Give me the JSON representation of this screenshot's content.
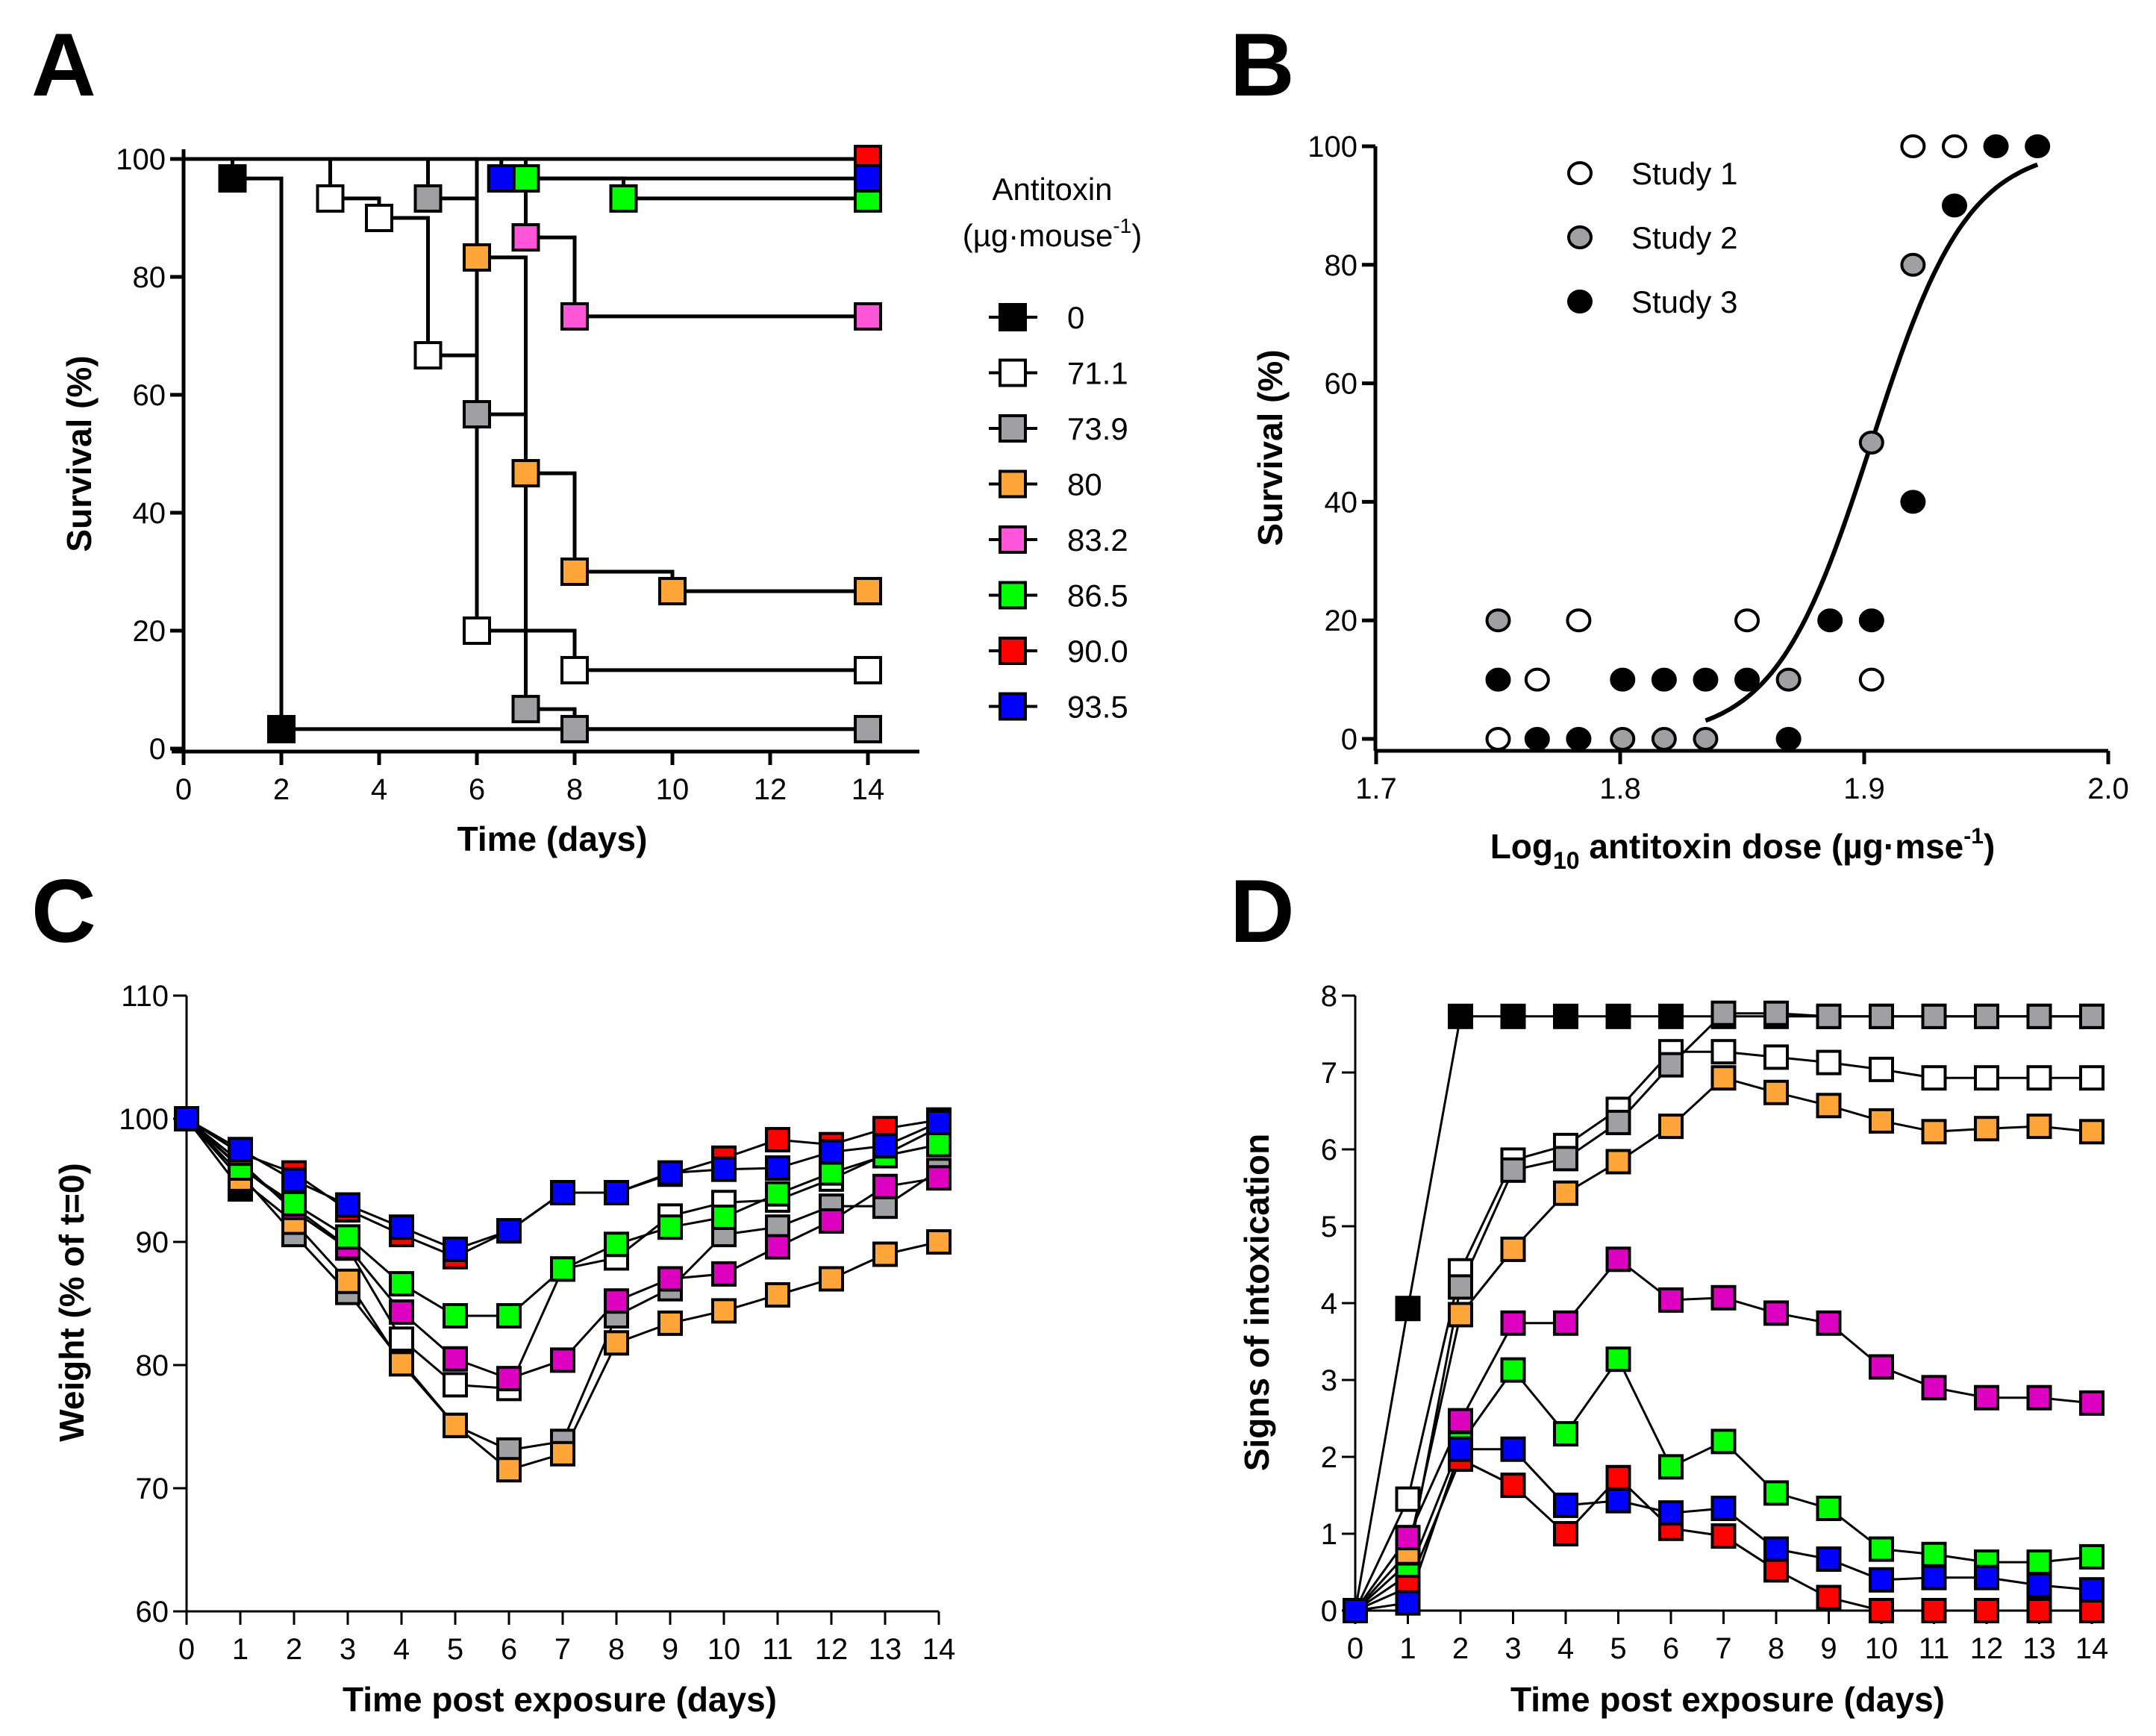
{
  "figure": {
    "panels": [
      "A",
      "B",
      "C",
      "D"
    ]
  },
  "series_styles": [
    {
      "dose": "0",
      "fill": "#000000"
    },
    {
      "dose": "71.1",
      "fill": "#ffffff"
    },
    {
      "dose": "73.9",
      "fill": "#a0a0a4"
    },
    {
      "dose": "80",
      "fill": "#ffa53a"
    },
    {
      "dose": "83.2",
      "fill": "#ff55d8"
    },
    {
      "dose": "86.5",
      "fill": "#00ff00"
    },
    {
      "dose": "90.0",
      "fill": "#ff0000"
    },
    {
      "dose": "93.5",
      "fill": "#0000ff"
    }
  ],
  "legend_A": {
    "title_line1": "Antitoxin",
    "title_line2_prefix": "(µg·mouse",
    "title_line2_sup": "-1",
    "title_line2_suffix": ")",
    "entries": [
      "0",
      "71.1",
      "73.9",
      "80",
      "83.2",
      "86.5",
      "90.0",
      "93.5"
    ]
  },
  "chart_data": [
    {
      "panel": "A",
      "type": "line",
      "subtype": "kaplan-meier step",
      "title": "",
      "xlabel": "Time (days)",
      "ylabel": "Survival (%)",
      "xlim": [
        0,
        15
      ],
      "ylim": [
        0,
        100
      ],
      "xticks": [
        0,
        2,
        4,
        6,
        8,
        10,
        12,
        14
      ],
      "yticks": [
        0,
        20,
        40,
        60,
        80,
        100
      ],
      "legend_position": "right",
      "series": [
        {
          "name": "0",
          "points": [
            [
              0,
              100
            ],
            [
              1,
              96.7
            ],
            [
              2,
              3.3
            ],
            [
              14,
              3.3
            ]
          ],
          "markers": [
            [
              1,
              96.7
            ],
            [
              2,
              3.3
            ]
          ]
        },
        {
          "name": "71.1",
          "points": [
            [
              0,
              100
            ],
            [
              3,
              93.3
            ],
            [
              4,
              90
            ],
            [
              5,
              66.7
            ],
            [
              6,
              20
            ],
            [
              8,
              13.3
            ],
            [
              14,
              13.3
            ]
          ],
          "markers": [
            [
              3,
              93.3
            ],
            [
              4,
              90
            ],
            [
              5,
              66.7
            ],
            [
              6,
              20
            ],
            [
              8,
              13.3
            ],
            [
              14,
              13.3
            ]
          ]
        },
        {
          "name": "73.9",
          "points": [
            [
              0,
              100
            ],
            [
              5,
              93.3
            ],
            [
              6,
              56.7
            ],
            [
              7,
              6.7
            ],
            [
              8,
              3.3
            ],
            [
              14,
              3.3
            ]
          ],
          "markers": [
            [
              5,
              93.3
            ],
            [
              6,
              56.7
            ],
            [
              7,
              6.7
            ],
            [
              8,
              3.3
            ],
            [
              14,
              3.3
            ]
          ]
        },
        {
          "name": "80",
          "points": [
            [
              0,
              100
            ],
            [
              6,
              83.3
            ],
            [
              7,
              46.7
            ],
            [
              8,
              30
            ],
            [
              10,
              26.7
            ],
            [
              14,
              26.7
            ]
          ],
          "markers": [
            [
              6,
              83.3
            ],
            [
              7,
              46.7
            ],
            [
              8,
              30
            ],
            [
              10,
              26.7
            ],
            [
              14,
              26.7
            ]
          ]
        },
        {
          "name": "83.2",
          "points": [
            [
              0,
              100
            ],
            [
              7,
              86.7
            ],
            [
              8,
              73.3
            ],
            [
              14,
              73.3
            ]
          ],
          "markers": [
            [
              7,
              86.7
            ],
            [
              8,
              73.3
            ],
            [
              14,
              73.3
            ]
          ]
        },
        {
          "name": "86.5",
          "points": [
            [
              0,
              100
            ],
            [
              7,
              96.7
            ],
            [
              9,
              93.3
            ],
            [
              14,
              93.3
            ]
          ],
          "markers": [
            [
              7,
              96.7
            ],
            [
              9,
              93.3
            ],
            [
              14,
              93.3
            ]
          ]
        },
        {
          "name": "90.0",
          "points": [
            [
              0,
              100
            ],
            [
              14,
              100
            ]
          ],
          "markers": [
            [
              14,
              100
            ]
          ]
        },
        {
          "name": "93.5",
          "points": [
            [
              0,
              100
            ],
            [
              6.5,
              96.7
            ],
            [
              14,
              96.7
            ]
          ],
          "markers": [
            [
              6.5,
              96.7
            ],
            [
              14,
              96.7
            ]
          ]
        }
      ]
    },
    {
      "panel": "B",
      "type": "scatter",
      "title": "",
      "xlabel_prefix": "Log",
      "xlabel_sub": "10",
      "xlabel_mid": " antitoxin dose (µg·mse",
      "xlabel_sup": "-1",
      "xlabel_suffix": ")",
      "ylabel": "Survival (%)",
      "xlim": [
        1.7,
        2.0
      ],
      "ylim": [
        0,
        100
      ],
      "xticks": [
        "1.7",
        "1.8",
        "1.9",
        "2.0"
      ],
      "yticks": [
        0,
        20,
        40,
        60,
        80,
        100
      ],
      "legend_position": "top-left",
      "series": [
        {
          "name": "Study 1",
          "fill": "#ffffff",
          "points": [
            [
              1.75,
              0
            ],
            [
              1.766,
              10
            ],
            [
              1.783,
              20
            ],
            [
              1.852,
              20
            ],
            [
              1.903,
              10
            ],
            [
              1.92,
              100
            ],
            [
              1.937,
              100
            ]
          ]
        },
        {
          "name": "Study 2",
          "fill": "#a0a0a4",
          "points": [
            [
              1.75,
              20
            ],
            [
              1.801,
              0
            ],
            [
              1.818,
              0
            ],
            [
              1.835,
              0
            ],
            [
              1.869,
              10
            ],
            [
              1.903,
              50
            ],
            [
              1.92,
              80
            ]
          ]
        },
        {
          "name": "Study 3",
          "fill": "#000000",
          "points": [
            [
              1.75,
              10
            ],
            [
              1.766,
              0
            ],
            [
              1.783,
              0
            ],
            [
              1.801,
              10
            ],
            [
              1.818,
              10
            ],
            [
              1.835,
              10
            ],
            [
              1.852,
              10
            ],
            [
              1.869,
              0
            ],
            [
              1.886,
              20
            ],
            [
              1.903,
              20
            ],
            [
              1.92,
              40
            ],
            [
              1.937,
              90
            ],
            [
              1.954,
              100
            ],
            [
              1.971,
              100
            ]
          ]
        }
      ],
      "fit_curve": {
        "type": "sigmoid",
        "x_range": [
          1.835,
          1.971
        ],
        "bottom": 0,
        "top": 100,
        "ec50_log": 1.903,
        "hill_slope": 22
      }
    },
    {
      "panel": "C",
      "type": "line",
      "title": "",
      "xlabel": "Time post exposure (days)",
      "ylabel": "Weight (% of t=0)",
      "xlim": [
        0,
        14
      ],
      "ylim": [
        60,
        110
      ],
      "xticks": [
        0,
        1,
        2,
        3,
        4,
        5,
        6,
        7,
        8,
        9,
        10,
        11,
        12,
        13,
        14
      ],
      "yticks": [
        60,
        70,
        80,
        90,
        100,
        110
      ],
      "x": [
        0,
        1,
        2,
        3,
        4,
        5,
        6,
        7,
        8,
        9,
        10,
        11,
        12,
        13,
        14
      ],
      "series": [
        {
          "name": "0",
          "values": [
            100,
            94.3,
            null,
            null,
            null,
            null,
            null,
            null,
            null,
            null,
            null,
            null,
            null,
            null,
            null
          ]
        },
        {
          "name": "71.1",
          "values": [
            100,
            96.5,
            92.5,
            89.5,
            82.1,
            78.4,
            78.1,
            87.8,
            88.7,
            92.1,
            93.2,
            93.4,
            95.1,
            97.1,
            99.3
          ]
        },
        {
          "name": "73.9",
          "values": [
            100,
            95.5,
            90.6,
            85.9,
            80.3,
            75.1,
            73.1,
            73.8,
            84.0,
            86.2,
            90.6,
            91.2,
            92.9,
            92.9,
            95.8
          ]
        },
        {
          "name": "80",
          "values": [
            100,
            95.1,
            91.6,
            86.8,
            80.1,
            75.1,
            71.5,
            72.8,
            81.8,
            83.4,
            84.4,
            85.7,
            87.0,
            89.0,
            90.0
          ]
        },
        {
          "name": "83.2",
          "values": [
            100,
            96.1,
            92.8,
            89.6,
            84.3,
            80.5,
            78.9,
            80.4,
            85.2,
            87.0,
            87.4,
            89.6,
            91.7,
            94.5,
            95.2
          ]
        },
        {
          "name": "86.5",
          "values": [
            100,
            96.0,
            93.1,
            90.4,
            86.6,
            84.0,
            84.0,
            87.8,
            89.8,
            91.2,
            92.0,
            93.9,
            95.6,
            97.0,
            97.9
          ]
        },
        {
          "name": "90.0",
          "values": [
            100,
            97.2,
            95.6,
            92.6,
            90.6,
            88.8,
            90.9,
            94.0,
            94.0,
            95.5,
            96.8,
            98.3,
            97.9,
            99.2,
            99.9
          ]
        },
        {
          "name": "93.5",
          "values": [
            100,
            97.5,
            95.0,
            93.0,
            91.2,
            89.4,
            90.9,
            94.0,
            94.0,
            95.6,
            95.9,
            96.0,
            97.3,
            97.8,
            99.7
          ]
        }
      ]
    },
    {
      "panel": "D",
      "type": "line",
      "title": "",
      "xlabel": "Time post exposure (days)",
      "ylabel": "Signs of intoxication",
      "xlim": [
        0,
        14
      ],
      "ylim": [
        0,
        8
      ],
      "xticks": [
        0,
        1,
        2,
        3,
        4,
        5,
        6,
        7,
        8,
        9,
        10,
        11,
        12,
        13,
        14
      ],
      "yticks": [
        0,
        1,
        2,
        3,
        4,
        5,
        6,
        7,
        8
      ],
      "x": [
        0,
        1,
        2,
        3,
        4,
        5,
        6,
        7,
        8,
        9,
        10,
        11,
        12,
        13,
        14
      ],
      "series": [
        {
          "name": "0",
          "values": [
            0,
            3.93,
            7.73,
            7.73,
            7.73,
            7.73,
            7.73,
            7.73,
            7.73,
            7.73,
            7.73,
            7.73,
            7.73,
            7.73,
            7.73
          ]
        },
        {
          "name": "71.1",
          "values": [
            0,
            1.45,
            4.42,
            5.86,
            6.05,
            6.52,
            7.27,
            7.27,
            7.2,
            7.13,
            7.04,
            6.93,
            6.93,
            6.93,
            6.93
          ]
        },
        {
          "name": "73.9",
          "values": [
            0,
            0.62,
            4.21,
            5.73,
            5.88,
            6.35,
            7.1,
            7.77,
            7.77,
            7.73,
            7.73,
            7.73,
            7.73,
            7.73,
            7.73
          ]
        },
        {
          "name": "80",
          "values": [
            0,
            0.76,
            3.85,
            4.7,
            5.43,
            5.84,
            6.3,
            6.93,
            6.74,
            6.57,
            6.37,
            6.23,
            6.27,
            6.3,
            6.23
          ]
        },
        {
          "name": "83.2",
          "values": [
            0,
            0.95,
            2.47,
            3.74,
            3.74,
            4.57,
            4.04,
            4.07,
            3.87,
            3.74,
            3.17,
            2.9,
            2.77,
            2.77,
            2.7
          ]
        },
        {
          "name": "86.5",
          "values": [
            0,
            0.46,
            2.17,
            3.13,
            2.3,
            3.27,
            1.87,
            2.2,
            1.53,
            1.33,
            0.8,
            0.73,
            0.63,
            0.63,
            0.7
          ]
        },
        {
          "name": "90.0",
          "values": [
            0,
            0.3,
            1.97,
            1.63,
            1.0,
            1.73,
            1.07,
            0.97,
            0.53,
            0.17,
            0,
            0,
            0,
            0,
            0
          ]
        },
        {
          "name": "93.5",
          "values": [
            0,
            0.1,
            2.1,
            2.1,
            1.37,
            1.43,
            1.27,
            1.33,
            0.8,
            0.67,
            0.4,
            0.43,
            0.43,
            0.33,
            0.27
          ]
        }
      ]
    }
  ]
}
